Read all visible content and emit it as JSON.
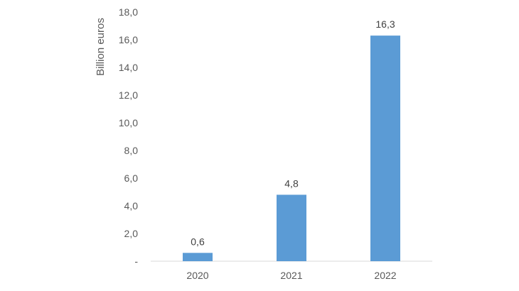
{
  "chart_data": {
    "type": "bar",
    "categories": [
      "2020",
      "2021",
      "2022"
    ],
    "values": [
      0.6,
      4.8,
      16.3
    ],
    "value_labels": [
      "0,6",
      "4,8",
      "16,3"
    ],
    "title": "",
    "xlabel": "",
    "ylabel": "Billion euros",
    "ylim": [
      0,
      18
    ],
    "y_ticks": [
      0,
      2,
      4,
      6,
      8,
      10,
      12,
      14,
      16,
      18
    ],
    "y_tick_labels": [
      "-",
      "2,0",
      "4,0",
      "6,0",
      "8,0",
      "10,0",
      "12,0",
      "14,0",
      "16,0",
      "18,0"
    ],
    "grid": false,
    "legend": "none",
    "bar_color": "#5b9bd5"
  }
}
